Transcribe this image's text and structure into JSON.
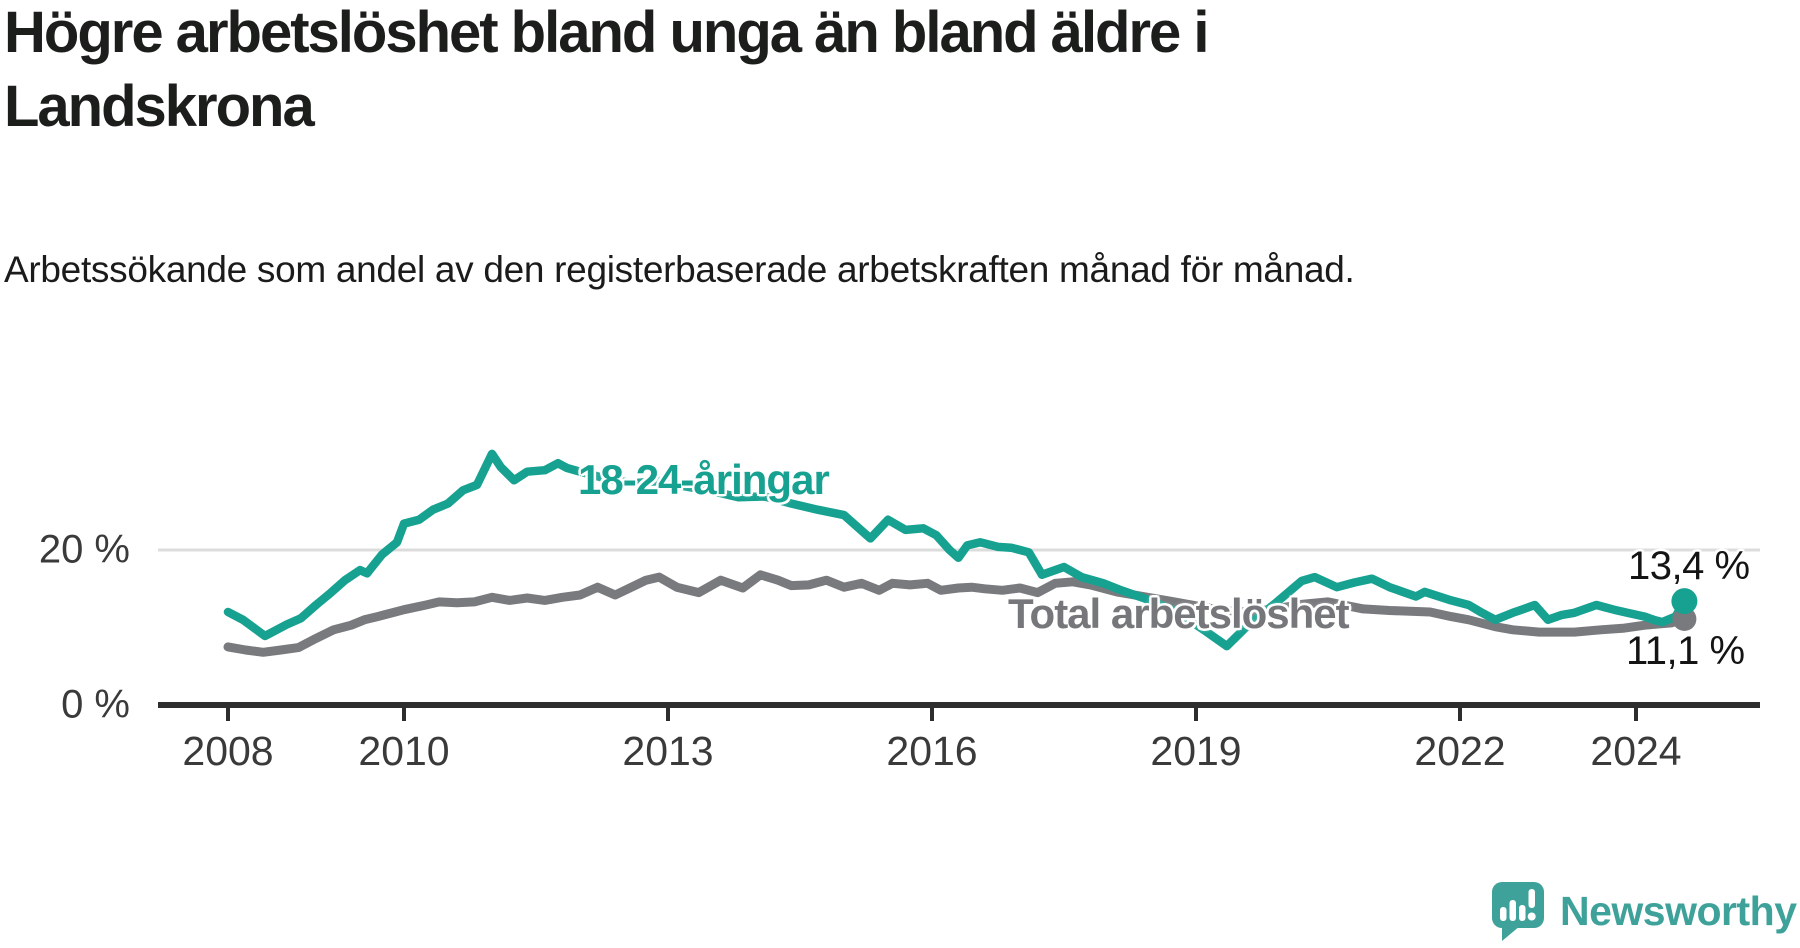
{
  "header": {
    "title": "Högre arbetslöshet bland unga än bland äldre i Landskrona",
    "subtitle": "Arbetssökande som andel av den registerbaserade arbetskraften månad för månad."
  },
  "chart_data": {
    "type": "line",
    "title": "Högre arbetslöshet bland unga än bland äldre i Landskrona",
    "xlabel": "",
    "ylabel": "Arbetssökande som andel av den registerbaserade arbetskraften (%)",
    "x_axis": {
      "unit": "year",
      "range": [
        2007.5,
        2025.2
      ],
      "ticks": [
        {
          "year": 2008,
          "label": "2008"
        },
        {
          "year": 2010,
          "label": "2010"
        },
        {
          "year": 2013,
          "label": "2013"
        },
        {
          "year": 2016,
          "label": "2016"
        },
        {
          "year": 2019,
          "label": "2019"
        },
        {
          "year": 2022,
          "label": "2022"
        },
        {
          "year": 2024,
          "label": "2024"
        }
      ]
    },
    "y_axis": {
      "unit": "%",
      "range": [
        0,
        44
      ],
      "grid": "on",
      "ticks": [
        {
          "value": 0,
          "label": "0 %"
        },
        {
          "value": 20,
          "label": "20 %"
        }
      ]
    },
    "series": [
      {
        "name": "Total arbetslöshet",
        "color": "#797a7e",
        "end_label": "11,1 %",
        "end_value": 11.1,
        "points": [
          [
            2008.0,
            7.5
          ],
          [
            2008.2,
            7.1
          ],
          [
            2008.4,
            6.8
          ],
          [
            2008.6,
            7.1
          ],
          [
            2008.8,
            7.4
          ],
          [
            2009.0,
            8.6
          ],
          [
            2009.2,
            9.7
          ],
          [
            2009.4,
            10.3
          ],
          [
            2009.55,
            11.0
          ],
          [
            2009.7,
            11.4
          ],
          [
            2009.9,
            12.0
          ],
          [
            2010.0,
            12.3
          ],
          [
            2010.25,
            12.9
          ],
          [
            2010.4,
            13.3
          ],
          [
            2010.6,
            13.2
          ],
          [
            2010.8,
            13.3
          ],
          [
            2011.0,
            13.9
          ],
          [
            2011.2,
            13.5
          ],
          [
            2011.4,
            13.8
          ],
          [
            2011.6,
            13.5
          ],
          [
            2011.8,
            13.9
          ],
          [
            2012.0,
            14.2
          ],
          [
            2012.2,
            15.2
          ],
          [
            2012.4,
            14.2
          ],
          [
            2012.75,
            16.1
          ],
          [
            2012.9,
            16.5
          ],
          [
            2013.1,
            15.2
          ],
          [
            2013.35,
            14.5
          ],
          [
            2013.6,
            16.1
          ],
          [
            2013.85,
            15.1
          ],
          [
            2014.05,
            16.8
          ],
          [
            2014.25,
            16.1
          ],
          [
            2014.4,
            15.4
          ],
          [
            2014.6,
            15.5
          ],
          [
            2014.8,
            16.1
          ],
          [
            2015.0,
            15.2
          ],
          [
            2015.2,
            15.7
          ],
          [
            2015.4,
            14.8
          ],
          [
            2015.55,
            15.7
          ],
          [
            2015.75,
            15.5
          ],
          [
            2015.95,
            15.7
          ],
          [
            2016.1,
            14.8
          ],
          [
            2016.3,
            15.1
          ],
          [
            2016.45,
            15.2
          ],
          [
            2016.6,
            15.0
          ],
          [
            2016.8,
            14.8
          ],
          [
            2017.0,
            15.1
          ],
          [
            2017.2,
            14.5
          ],
          [
            2017.4,
            15.7
          ],
          [
            2017.6,
            15.9
          ],
          [
            2017.8,
            15.5
          ],
          [
            2018.1,
            14.6
          ],
          [
            2018.4,
            14.0
          ],
          [
            2018.7,
            13.4
          ],
          [
            2019.0,
            12.8
          ],
          [
            2019.3,
            12.2
          ],
          [
            2019.6,
            12.0
          ],
          [
            2019.9,
            12.4
          ],
          [
            2020.2,
            13.0
          ],
          [
            2020.5,
            13.3
          ],
          [
            2020.9,
            12.4
          ],
          [
            2021.2,
            12.2
          ],
          [
            2021.66,
            12.0
          ],
          [
            2021.9,
            11.4
          ],
          [
            2022.1,
            11.0
          ],
          [
            2022.4,
            10.1
          ],
          [
            2022.6,
            9.7
          ],
          [
            2022.9,
            9.4
          ],
          [
            2023.3,
            9.4
          ],
          [
            2023.6,
            9.7
          ],
          [
            2023.85,
            9.9
          ],
          [
            2024.1,
            10.3
          ],
          [
            2024.4,
            10.6
          ],
          [
            2024.55,
            11.1
          ]
        ]
      },
      {
        "name": "18-24-åringar",
        "color": "#17a191",
        "end_label": "13,4 %",
        "end_value": 13.4,
        "points": [
          [
            2008.0,
            12.0
          ],
          [
            2008.17,
            11.0
          ],
          [
            2008.42,
            8.9
          ],
          [
            2008.67,
            10.4
          ],
          [
            2008.83,
            11.2
          ],
          [
            2009.0,
            12.9
          ],
          [
            2009.17,
            14.5
          ],
          [
            2009.33,
            16.1
          ],
          [
            2009.5,
            17.4
          ],
          [
            2009.58,
            17.0
          ],
          [
            2009.75,
            19.4
          ],
          [
            2009.92,
            21.0
          ],
          [
            2010.0,
            23.4
          ],
          [
            2010.17,
            23.9
          ],
          [
            2010.33,
            25.2
          ],
          [
            2010.5,
            26.0
          ],
          [
            2010.67,
            27.7
          ],
          [
            2010.83,
            28.4
          ],
          [
            2011.0,
            32.4
          ],
          [
            2011.1,
            30.7
          ],
          [
            2011.25,
            29.0
          ],
          [
            2011.4,
            30.1
          ],
          [
            2011.6,
            30.3
          ],
          [
            2011.75,
            31.2
          ],
          [
            2011.85,
            30.6
          ],
          [
            2012.0,
            30.1
          ],
          [
            2012.3,
            29.2
          ],
          [
            2012.6,
            28.6
          ],
          [
            2012.9,
            28.9
          ],
          [
            2013.2,
            28.2
          ],
          [
            2013.5,
            27.6
          ],
          [
            2013.8,
            26.8
          ],
          [
            2014.1,
            26.9
          ],
          [
            2014.4,
            26.0
          ],
          [
            2014.7,
            25.2
          ],
          [
            2015.0,
            24.5
          ],
          [
            2015.3,
            21.5
          ],
          [
            2015.5,
            23.9
          ],
          [
            2015.7,
            22.6
          ],
          [
            2015.9,
            22.8
          ],
          [
            2016.05,
            21.9
          ],
          [
            2016.2,
            20.0
          ],
          [
            2016.3,
            19.0
          ],
          [
            2016.4,
            20.6
          ],
          [
            2016.55,
            21.0
          ],
          [
            2016.75,
            20.4
          ],
          [
            2016.9,
            20.3
          ],
          [
            2017.1,
            19.7
          ],
          [
            2017.25,
            16.8
          ],
          [
            2017.5,
            17.8
          ],
          [
            2017.7,
            16.5
          ],
          [
            2017.95,
            15.7
          ],
          [
            2018.15,
            14.8
          ],
          [
            2018.5,
            13.4
          ],
          [
            2018.8,
            11.9
          ],
          [
            2019.1,
            9.6
          ],
          [
            2019.35,
            7.6
          ],
          [
            2019.6,
            10.4
          ],
          [
            2019.9,
            13.1
          ],
          [
            2020.2,
            16.0
          ],
          [
            2020.35,
            16.5
          ],
          [
            2020.6,
            15.2
          ],
          [
            2020.8,
            15.8
          ],
          [
            2021.0,
            16.3
          ],
          [
            2021.2,
            15.2
          ],
          [
            2021.5,
            14.0
          ],
          [
            2021.6,
            14.6
          ],
          [
            2021.9,
            13.5
          ],
          [
            2022.1,
            12.9
          ],
          [
            2022.25,
            11.9
          ],
          [
            2022.4,
            11.0
          ],
          [
            2022.6,
            11.9
          ],
          [
            2022.7,
            12.3
          ],
          [
            2022.85,
            12.9
          ],
          [
            2023.0,
            11.0
          ],
          [
            2023.15,
            11.6
          ],
          [
            2023.3,
            11.9
          ],
          [
            2023.55,
            12.9
          ],
          [
            2023.65,
            12.6
          ],
          [
            2023.75,
            12.3
          ],
          [
            2023.9,
            11.9
          ],
          [
            2024.1,
            11.4
          ],
          [
            2024.2,
            11.0
          ],
          [
            2024.3,
            10.7
          ],
          [
            2024.45,
            11.4
          ],
          [
            2024.55,
            13.4
          ]
        ]
      }
    ],
    "legend_position": "inline-labels",
    "style": {
      "grid_color": "#dcdcdc",
      "axis_color": "#2e2e2e",
      "tick_text_color": "#3a3a3a"
    }
  },
  "footer": {
    "brand": "Newsworthy",
    "brand_color": "#3ea29a"
  }
}
